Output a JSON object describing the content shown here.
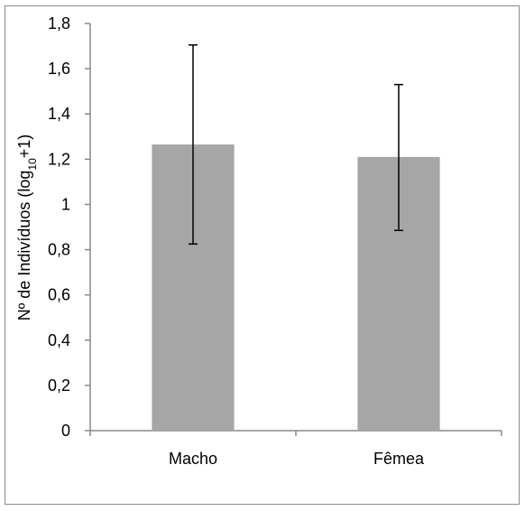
{
  "chart_data": {
    "type": "bar",
    "categories": [
      "Macho",
      "Fêmea"
    ],
    "values": [
      1.265,
      1.21
    ],
    "error_low": [
      0.825,
      0.885
    ],
    "error_high": [
      1.705,
      1.53
    ],
    "ylim": [
      0,
      1.8
    ],
    "yticks": [
      "0",
      "0,2",
      "0,4",
      "0,6",
      "0,8",
      "1",
      "1,2",
      "1,4",
      "1,6",
      "1,8"
    ],
    "ylabel_pre": "Nº de Indivíduos (log",
    "ylabel_sub": "10",
    "ylabel_post": "+1)",
    "xlabel": "",
    "grid": false,
    "bar_color": "#a6a6a6",
    "axis_color": "#888888"
  }
}
